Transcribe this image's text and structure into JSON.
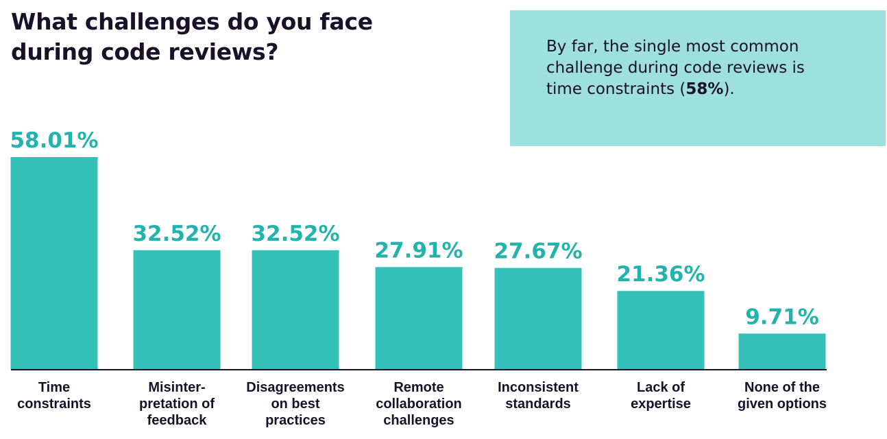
{
  "title": {
    "line1": "What challenges do you face",
    "line2": "during code reviews?"
  },
  "callout": {
    "text_before": "By far, the single most common challenge during code reviews is time constraints (",
    "text_bold": "58%",
    "text_after": ")."
  },
  "colors": {
    "bar": "#33c0b9",
    "value_label": "#23b3ad",
    "callout_bg": "#9ee0de",
    "text": "#1a1028"
  },
  "chart_data": {
    "type": "bar",
    "categories": [
      [
        "Time",
        "constraints"
      ],
      [
        "Misinter-",
        "pretation of",
        "feedback"
      ],
      [
        "Disagreements",
        "on best",
        "practices"
      ],
      [
        "Remote",
        "collaboration",
        "challenges"
      ],
      [
        "Inconsistent",
        "standards"
      ],
      [
        "Lack of",
        "expertise"
      ],
      [
        "None of the",
        "given options"
      ]
    ],
    "values": [
      58.01,
      32.52,
      32.52,
      27.91,
      27.67,
      21.36,
      9.71
    ],
    "value_labels": [
      "58.01%",
      "32.52%",
      "32.52%",
      "27.91%",
      "27.67%",
      "21.36%",
      "9.71%"
    ],
    "title": "What challenges do you face during code reviews?",
    "xlabel": "",
    "ylabel": "",
    "ylim": [
      0,
      58.01
    ],
    "grid": false,
    "legend": "none"
  }
}
